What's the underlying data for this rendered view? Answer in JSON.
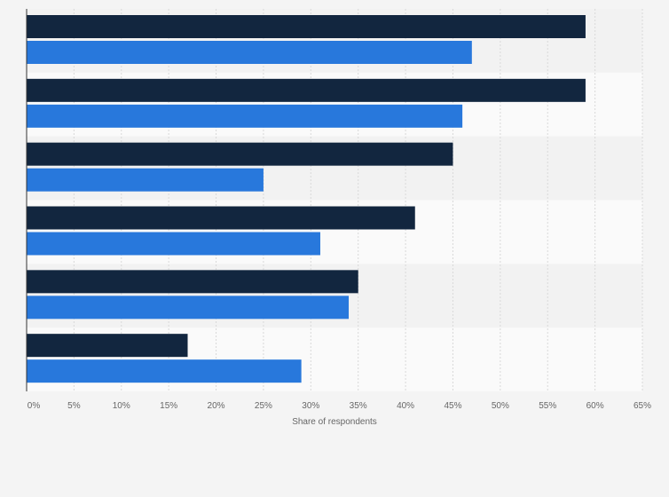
{
  "chart_data": {
    "type": "bar",
    "orientation": "horizontal",
    "title": "",
    "xlabel": "Share of respondents",
    "ylabel": "",
    "xlim": [
      0,
      65
    ],
    "x_ticks": [
      "0%",
      "5%",
      "10%",
      "15%",
      "20%",
      "25%",
      "30%",
      "35%",
      "40%",
      "45%",
      "50%",
      "55%",
      "60%",
      "65%"
    ],
    "grid": true,
    "legend": "none",
    "categories": [
      "",
      "",
      "",
      "",
      "",
      ""
    ],
    "series": [
      {
        "color": "#12263f",
        "values": [
          59,
          59,
          45,
          41,
          35,
          17
        ]
      },
      {
        "color": "#2878dc",
        "values": [
          47,
          46,
          25,
          31,
          34,
          29
        ]
      }
    ],
    "band_colors": [
      "#f2f2f2",
      "#fafafa"
    ],
    "gridline_color": "#d9d9d9"
  }
}
